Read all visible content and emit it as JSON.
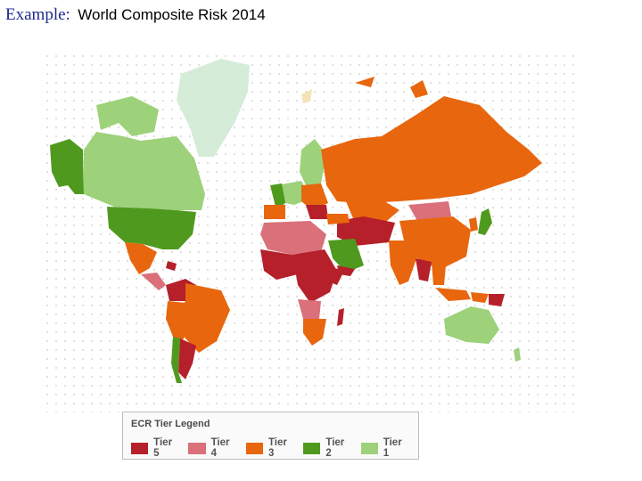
{
  "title": {
    "prefix": "Example:",
    "text": "World Composite Risk 2014"
  },
  "legend": {
    "title": "ECR Tier Legend",
    "tiers": [
      {
        "label": "Tier 5",
        "color": "#b5202a"
      },
      {
        "label": "Tier 4",
        "color": "#d9707a"
      },
      {
        "label": "Tier 3",
        "color": "#e8660e"
      },
      {
        "label": "Tier 2",
        "color": "#4f9a1e"
      },
      {
        "label": "Tier 1",
        "color": "#9dd17a"
      }
    ]
  },
  "colors": {
    "no_data_light": "#d4ecd8",
    "no_data_pale": "#f5e3b8",
    "dots": "#d8d8d8"
  }
}
